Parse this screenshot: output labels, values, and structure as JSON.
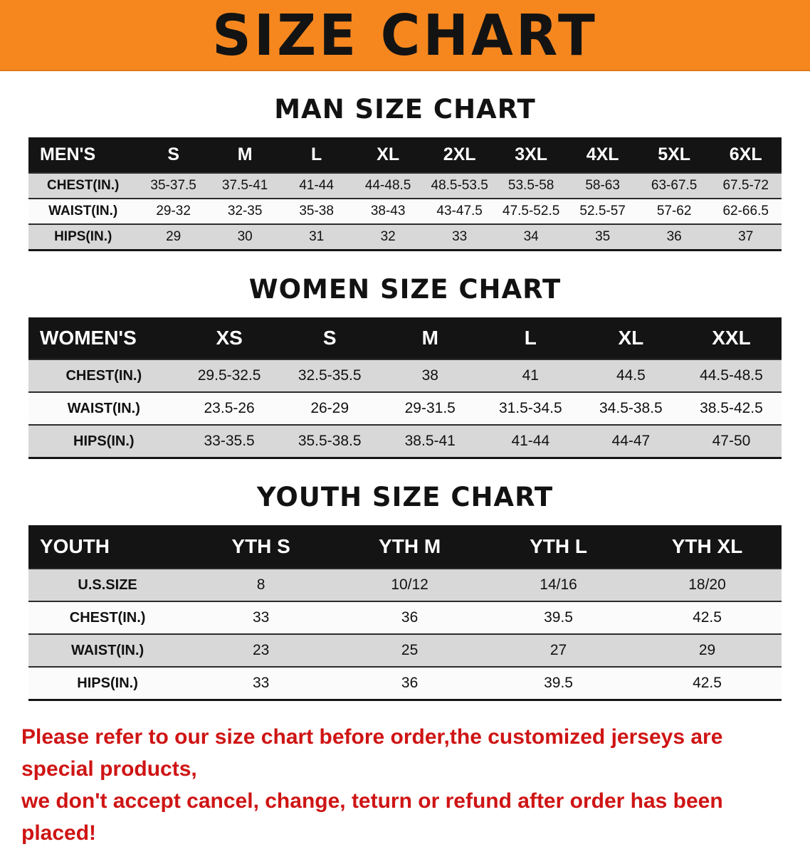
{
  "banner": {
    "title": "SIZE CHART",
    "background": "#f6871f"
  },
  "sections": [
    {
      "id": "men",
      "heading": "MAN SIZE CHART",
      "table": {
        "header": [
          "MEN'S",
          "S",
          "M",
          "L",
          "XL",
          "2XL",
          "3XL",
          "4XL",
          "5XL",
          "6XL"
        ],
        "rows": [
          [
            "CHEST(IN.)",
            "35-37.5",
            "37.5-41",
            "41-44",
            "44-48.5",
            "48.5-53.5",
            "53.5-58",
            "58-63",
            "63-67.5",
            "67.5-72"
          ],
          [
            "WAIST(IN.)",
            "29-32",
            "32-35",
            "35-38",
            "38-43",
            "43-47.5",
            "47.5-52.5",
            "52.5-57",
            "57-62",
            "62-66.5"
          ],
          [
            "HIPS(IN.)",
            "29",
            "30",
            "31",
            "32",
            "33",
            "34",
            "35",
            "36",
            "37"
          ]
        ]
      }
    },
    {
      "id": "women",
      "heading": "WOMEN SIZE CHART",
      "table": {
        "header": [
          "WOMEN'S",
          "XS",
          "S",
          "M",
          "L",
          "XL",
          "XXL"
        ],
        "rows": [
          [
            "CHEST(IN.)",
            "29.5-32.5",
            "32.5-35.5",
            "38",
            "41",
            "44.5",
            "44.5-48.5"
          ],
          [
            "WAIST(IN.)",
            "23.5-26",
            "26-29",
            "29-31.5",
            "31.5-34.5",
            "34.5-38.5",
            "38.5-42.5"
          ],
          [
            "HIPS(IN.)",
            "33-35.5",
            "35.5-38.5",
            "38.5-41",
            "41-44",
            "44-47",
            "47-50"
          ]
        ]
      }
    },
    {
      "id": "youth",
      "heading": "YOUTH SIZE CHART",
      "table": {
        "header": [
          "YOUTH",
          "YTH S",
          "YTH M",
          "YTH L",
          "YTH XL"
        ],
        "rows": [
          [
            "U.S.SIZE",
            "8",
            "10/12",
            "14/16",
            "18/20"
          ],
          [
            "CHEST(IN.)",
            "33",
            "36",
            "39.5",
            "42.5"
          ],
          [
            "WAIST(IN.)",
            "23",
            "25",
            "27",
            "29"
          ],
          [
            "HIPS(IN.)",
            "33",
            "36",
            "39.5",
            "42.5"
          ]
        ]
      }
    }
  ],
  "disclaimer": {
    "color": "#cf1414",
    "lines": [
      "Please refer to our size chart before order,the customized jerseys are special products,",
      "we don't accept cancel, change, teturn or refund after order has been placed!"
    ]
  }
}
